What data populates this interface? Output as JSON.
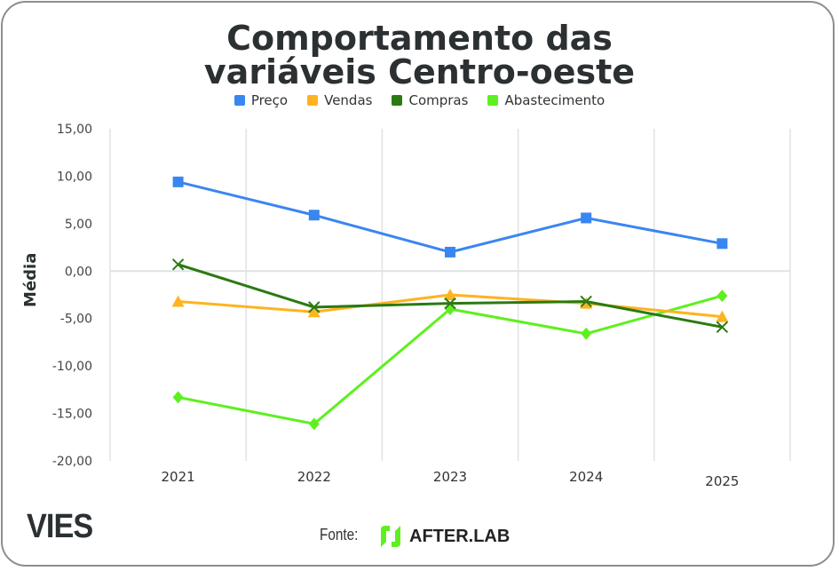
{
  "chart_data": {
    "type": "line",
    "title_line1": "Comportamento das",
    "title_line2": "variáveis Centro-oeste",
    "xlabel": "",
    "ylabel": "Média",
    "categories": [
      "2021",
      "2022",
      "2023",
      "2024",
      "2025"
    ],
    "ylim": [
      -20,
      15
    ],
    "yticks": [
      15,
      10,
      5,
      0,
      -5,
      -10,
      -15,
      -20
    ],
    "ytick_labels": [
      "15,00",
      "10,00",
      "5,00",
      "0,00",
      "-5,00",
      "-10,00",
      "-15,00",
      "-20,00"
    ],
    "legend_position": "top",
    "series": [
      {
        "name": "Preço",
        "color": "#3a86f0",
        "marker": "square",
        "values": [
          9.4,
          5.9,
          2.0,
          5.6,
          2.9
        ]
      },
      {
        "name": "Vendas",
        "color": "#ffb31f",
        "marker": "triangle",
        "values": [
          -3.2,
          -4.3,
          -2.5,
          -3.4,
          -4.8
        ]
      },
      {
        "name": "Compras",
        "color": "#2a7a12",
        "marker": "x",
        "values": [
          0.7,
          -3.8,
          -3.4,
          -3.2,
          -5.9
        ]
      },
      {
        "name": "Abastecimento",
        "color": "#5ef01e",
        "marker": "diamond",
        "values": [
          -13.3,
          -16.1,
          -4.0,
          -6.6,
          -2.6
        ]
      }
    ]
  },
  "footer": {
    "brand": "VIES",
    "source_label": "Fonte:",
    "source_name": "AFTER.LAB"
  }
}
